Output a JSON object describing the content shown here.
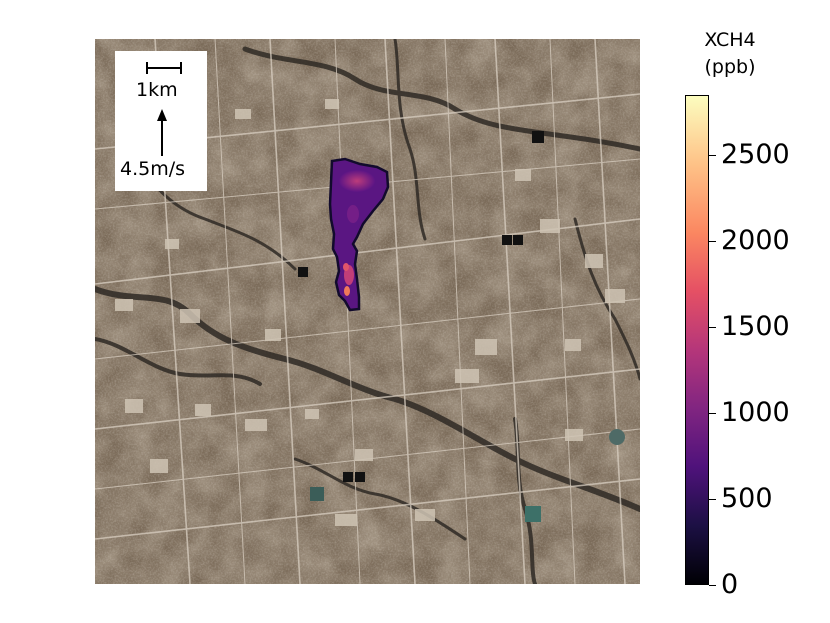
{
  "legend": {
    "scale_label": "1km",
    "wind_label": "4.5m/s"
  },
  "colorbar": {
    "title_line1": "XCH4",
    "title_line2": "(ppb)",
    "colormap": "magma",
    "range": [
      0,
      2850
    ],
    "ticks": [
      {
        "value": 0,
        "label": "0"
      },
      {
        "value": 500,
        "label": "500"
      },
      {
        "value": 1000,
        "label": "1000"
      },
      {
        "value": 1500,
        "label": "1500"
      },
      {
        "value": 2000,
        "label": "2000"
      },
      {
        "value": 2500,
        "label": "2500"
      }
    ]
  },
  "map": {
    "basemap": "satellite",
    "plume_color": "#6a1a8c"
  }
}
